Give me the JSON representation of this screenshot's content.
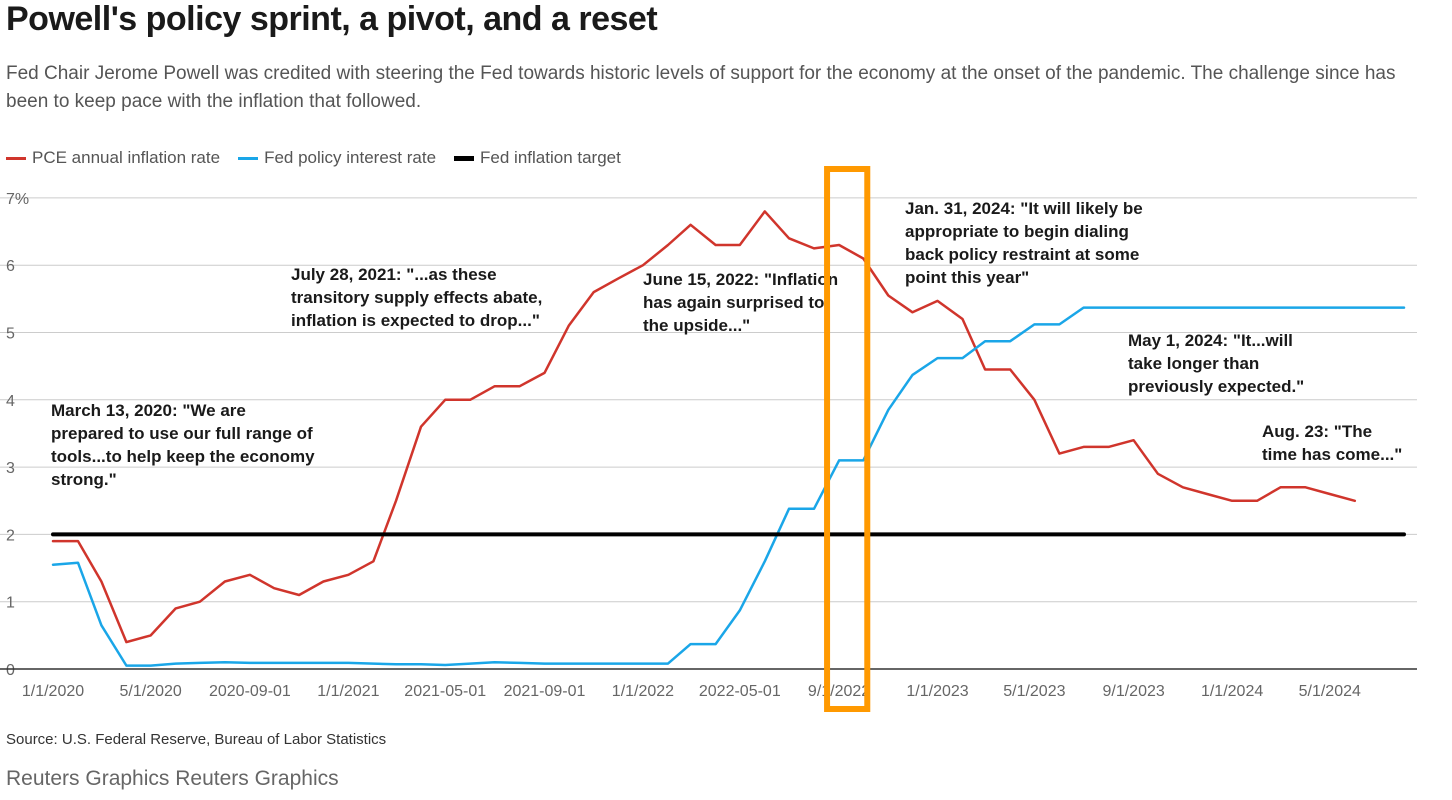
{
  "title": "Powell's policy sprint, a pivot, and a reset",
  "subtitle": "Fed Chair Jerome Powell was credited with steering the Fed towards historic levels of support for the economy at the onset of the pandemic. The challenge since has been to keep pace with the inflation that followed.",
  "legend": {
    "pce": "PCE annual inflation rate",
    "fed": "Fed policy interest rate",
    "target": "Fed inflation target"
  },
  "source": "Source: U.S. Federal Reserve, Bureau of Labor Statistics",
  "credit": "Reuters Graphics Reuters Graphics",
  "colors": {
    "pce": "#d0352c",
    "fed": "#1aa6e8",
    "target": "#000000",
    "highlight": "#ff9900",
    "grid": "#cccccc"
  },
  "chart_data": {
    "type": "line",
    "title": "",
    "xlabel": "",
    "ylabel": "",
    "xlim": [
      "2020-01-01",
      "2024-09-01"
    ],
    "ylim": [
      0,
      7
    ],
    "yticks": [
      0,
      1,
      2,
      3,
      4,
      5,
      6,
      7
    ],
    "ytick_labels": [
      "0",
      "1",
      "2",
      "3",
      "4",
      "5",
      "6",
      "7%"
    ],
    "xticks": [
      "2020-01-01",
      "2020-05-01",
      "2020-09-01",
      "2021-01-01",
      "2021-05-01",
      "2021-09-01",
      "2022-01-01",
      "2022-05-01",
      "2022-09-01",
      "2023-01-01",
      "2023-05-01",
      "2023-09-01",
      "2024-01-01",
      "2024-05-01"
    ],
    "xtick_labels": [
      "1/1/2020",
      "5/1/2020",
      "2020-09-01",
      "1/1/2021",
      "2021-05-01",
      "2021-09-01",
      "1/1/2022",
      "2022-05-01",
      "9/1/2022",
      "1/1/2023",
      "5/1/2023",
      "9/1/2023",
      "1/1/2024",
      "5/1/2024"
    ],
    "grid": true,
    "legend_position": "top-left",
    "series": [
      {
        "name": "PCE annual inflation rate",
        "x": [
          "2020-01",
          "2020-02",
          "2020-03",
          "2020-04",
          "2020-05",
          "2020-06",
          "2020-07",
          "2020-08",
          "2020-09",
          "2020-10",
          "2020-11",
          "2020-12",
          "2021-01",
          "2021-02",
          "2021-03",
          "2021-04",
          "2021-05",
          "2021-06",
          "2021-07",
          "2021-08",
          "2021-09",
          "2021-10",
          "2021-11",
          "2021-12",
          "2022-01",
          "2022-02",
          "2022-03",
          "2022-04",
          "2022-05",
          "2022-06",
          "2022-07",
          "2022-08",
          "2022-09",
          "2022-10",
          "2022-11",
          "2022-12",
          "2023-01",
          "2023-02",
          "2023-03",
          "2023-04",
          "2023-05",
          "2023-06",
          "2023-07",
          "2023-08",
          "2023-09",
          "2023-10",
          "2023-11",
          "2023-12",
          "2024-01",
          "2024-02",
          "2024-03",
          "2024-04",
          "2024-05",
          "2024-06"
        ],
        "values": [
          1.9,
          1.9,
          1.3,
          0.4,
          0.5,
          0.9,
          1.0,
          1.3,
          1.4,
          1.2,
          1.1,
          1.3,
          1.4,
          1.6,
          2.5,
          3.6,
          4.0,
          4.0,
          4.2,
          4.2,
          4.4,
          5.1,
          5.6,
          5.8,
          6.0,
          6.3,
          6.6,
          6.3,
          6.3,
          6.8,
          6.4,
          6.25,
          6.3,
          6.1,
          5.55,
          5.3,
          5.47,
          5.2,
          4.45,
          4.45,
          4.0,
          3.2,
          3.3,
          3.3,
          3.4,
          2.9,
          2.7,
          2.6,
          2.5,
          2.5,
          2.7,
          2.7,
          2.6,
          2.5
        ]
      },
      {
        "name": "Fed policy interest rate",
        "x": [
          "2020-01",
          "2020-02",
          "2020-03",
          "2020-04",
          "2020-05",
          "2020-06",
          "2020-07",
          "2020-08",
          "2020-09",
          "2020-10",
          "2020-11",
          "2020-12",
          "2021-01",
          "2021-02",
          "2021-03",
          "2021-04",
          "2021-05",
          "2021-06",
          "2021-07",
          "2021-08",
          "2021-09",
          "2021-10",
          "2021-11",
          "2021-12",
          "2022-01",
          "2022-02",
          "2022-03",
          "2022-04",
          "2022-05",
          "2022-06",
          "2022-07",
          "2022-08",
          "2022-09",
          "2022-10",
          "2022-11",
          "2022-12",
          "2023-01",
          "2023-02",
          "2023-03",
          "2023-04",
          "2023-05",
          "2023-06",
          "2023-07",
          "2023-08",
          "2023-09",
          "2023-10",
          "2023-11",
          "2023-12",
          "2024-01",
          "2024-02",
          "2024-03",
          "2024-04",
          "2024-05",
          "2024-06",
          "2024-07",
          "2024-08"
        ],
        "values": [
          1.55,
          1.58,
          0.65,
          0.05,
          0.05,
          0.08,
          0.09,
          0.1,
          0.09,
          0.09,
          0.09,
          0.09,
          0.09,
          0.08,
          0.07,
          0.07,
          0.06,
          0.08,
          0.1,
          0.09,
          0.08,
          0.08,
          0.08,
          0.08,
          0.08,
          0.08,
          0.37,
          0.37,
          0.87,
          1.6,
          2.38,
          2.38,
          3.1,
          3.1,
          3.85,
          4.37,
          4.62,
          4.62,
          4.87,
          4.87,
          5.12,
          5.12,
          5.37,
          5.37,
          5.37,
          5.37,
          5.37,
          5.37,
          5.37,
          5.37,
          5.37,
          5.37,
          5.37,
          5.37,
          5.37,
          5.37
        ]
      },
      {
        "name": "Fed inflation target",
        "x": [
          "2020-01",
          "2024-08"
        ],
        "values": [
          2,
          2
        ]
      }
    ],
    "annotations": [
      {
        "date": "2020-03",
        "lines": [
          "March 13, 2020: \"We are",
          "prepared to use our full range of",
          "tools...to help keep the economy",
          "strong.\""
        ]
      },
      {
        "date": "2021-07",
        "lines": [
          "July 28, 2021: \"...as these",
          "transitory supply effects abate,",
          "inflation is expected to drop...\""
        ]
      },
      {
        "date": "2022-06",
        "lines": [
          "June 15, 2022: \"Inflation",
          "has again surprised to",
          "the upside...\""
        ]
      },
      {
        "date": "2024-01",
        "lines": [
          "Jan. 31, 2024: \"It will likely be",
          "appropriate to begin dialing",
          "back policy restraint at some",
          "point this year\""
        ]
      },
      {
        "date": "2024-05",
        "lines": [
          "May 1, 2024: \"It...will",
          "take longer than",
          "previously expected.\""
        ]
      },
      {
        "date": "2024-08",
        "lines": [
          "Aug. 23: \"The",
          "time has come...\""
        ]
      }
    ],
    "highlight_range": [
      "2022-09",
      "2022-10"
    ]
  }
}
